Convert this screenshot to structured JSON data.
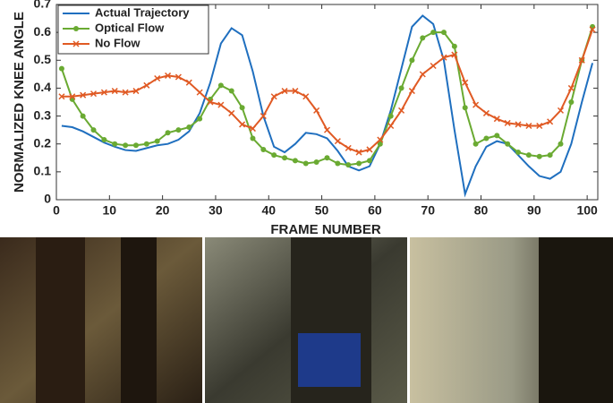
{
  "chart_data": {
    "type": "line",
    "xlabel": "FRAME NUMBER",
    "ylabel": "NORMALIZED KNEE ANGLE",
    "x": [
      1,
      3,
      5,
      7,
      9,
      11,
      13,
      15,
      17,
      19,
      21,
      23,
      25,
      27,
      29,
      31,
      33,
      35,
      37,
      39,
      41,
      43,
      45,
      47,
      49,
      51,
      53,
      55,
      57,
      59,
      61,
      63,
      65,
      67,
      69,
      71,
      73,
      75,
      77,
      79,
      81,
      83,
      85,
      87,
      89,
      91,
      93,
      95,
      97,
      99,
      101
    ],
    "series": [
      {
        "name": "Actual Trajectory",
        "color": "#1f6fbf",
        "marker": "none",
        "values": [
          0.265,
          0.26,
          0.245,
          0.225,
          0.205,
          0.19,
          0.178,
          0.175,
          0.185,
          0.195,
          0.2,
          0.215,
          0.245,
          0.31,
          0.42,
          0.56,
          0.615,
          0.59,
          0.46,
          0.3,
          0.19,
          0.17,
          0.2,
          0.24,
          0.235,
          0.22,
          0.175,
          0.12,
          0.105,
          0.12,
          0.2,
          0.32,
          0.47,
          0.62,
          0.66,
          0.63,
          0.5,
          0.25,
          0.02,
          0.12,
          0.19,
          0.21,
          0.2,
          0.16,
          0.12,
          0.085,
          0.075,
          0.1,
          0.2,
          0.35,
          0.49
        ]
      },
      {
        "name": "Optical Flow",
        "color": "#6aaa32",
        "marker": "circle",
        "values": [
          0.47,
          0.36,
          0.3,
          0.25,
          0.215,
          0.2,
          0.195,
          0.195,
          0.2,
          0.21,
          0.24,
          0.25,
          0.26,
          0.29,
          0.36,
          0.41,
          0.39,
          0.33,
          0.22,
          0.18,
          0.16,
          0.15,
          0.14,
          0.13,
          0.135,
          0.15,
          0.13,
          0.125,
          0.13,
          0.14,
          0.2,
          0.3,
          0.4,
          0.5,
          0.58,
          0.6,
          0.6,
          0.55,
          0.33,
          0.2,
          0.22,
          0.23,
          0.2,
          0.17,
          0.16,
          0.155,
          0.16,
          0.2,
          0.35,
          0.5,
          0.62
        ]
      },
      {
        "name": "No Flow",
        "color": "#e05a24",
        "marker": "x",
        "values": [
          0.37,
          0.37,
          0.375,
          0.38,
          0.385,
          0.39,
          0.385,
          0.39,
          0.41,
          0.435,
          0.445,
          0.44,
          0.42,
          0.385,
          0.35,
          0.34,
          0.31,
          0.27,
          0.255,
          0.3,
          0.37,
          0.39,
          0.39,
          0.37,
          0.32,
          0.25,
          0.21,
          0.185,
          0.17,
          0.18,
          0.215,
          0.265,
          0.32,
          0.39,
          0.45,
          0.48,
          0.51,
          0.52,
          0.42,
          0.34,
          0.31,
          0.29,
          0.275,
          0.27,
          0.265,
          0.265,
          0.28,
          0.32,
          0.4,
          0.5,
          0.61
        ]
      }
    ],
    "xlim": [
      0,
      102
    ],
    "xticks": [
      0,
      10,
      20,
      30,
      40,
      50,
      60,
      70,
      80,
      90,
      100
    ],
    "ylim": [
      0,
      0.7
    ],
    "yticks": [
      0,
      0.1,
      0.2,
      0.3,
      0.4,
      0.5,
      0.6,
      0.7
    ],
    "grid": false,
    "legend": "upper left"
  }
}
